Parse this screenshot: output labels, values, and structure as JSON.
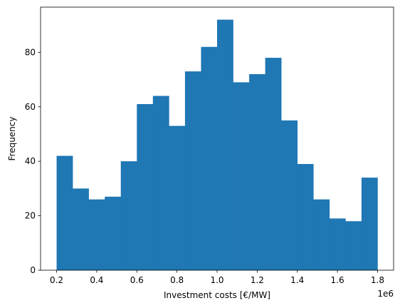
{
  "chart_data": {
    "type": "bar",
    "subtype": "histogram",
    "bins": [
      [
        0.2,
        0.28
      ],
      [
        0.28,
        0.36
      ],
      [
        0.36,
        0.44
      ],
      [
        0.44,
        0.52
      ],
      [
        0.52,
        0.6
      ],
      [
        0.6,
        0.68
      ],
      [
        0.68,
        0.76
      ],
      [
        0.76,
        0.84
      ],
      [
        0.84,
        0.92
      ],
      [
        0.92,
        1.0
      ],
      [
        1.0,
        1.08
      ],
      [
        1.08,
        1.16
      ],
      [
        1.16,
        1.24
      ],
      [
        1.24,
        1.32
      ],
      [
        1.32,
        1.4
      ],
      [
        1.4,
        1.48
      ],
      [
        1.48,
        1.56
      ],
      [
        1.56,
        1.64
      ],
      [
        1.64,
        1.72
      ],
      [
        1.72,
        1.8
      ]
    ],
    "values": [
      42,
      30,
      26,
      27,
      40,
      61,
      64,
      53,
      73,
      82,
      92,
      69,
      72,
      78,
      55,
      39,
      26,
      19,
      18,
      34
    ],
    "xlabel": "Investment costs [€/MW]",
    "ylabel": "Frequency",
    "x_offset_label": "1e6",
    "xlim": [
      0.12,
      1.88
    ],
    "ylim": [
      0,
      96.6
    ],
    "xticks": [
      0.2,
      0.4,
      0.6,
      0.8,
      1.0,
      1.2,
      1.4,
      1.6,
      1.8
    ],
    "xtick_labels": [
      "0.2",
      "0.4",
      "0.6",
      "0.8",
      "1.0",
      "1.2",
      "1.4",
      "1.6",
      "1.8"
    ],
    "yticks": [
      0,
      20,
      40,
      60,
      80
    ],
    "ytick_labels": [
      "0",
      "20",
      "40",
      "60",
      "80"
    ],
    "grid": false,
    "bar_color": "#1f77b4"
  }
}
